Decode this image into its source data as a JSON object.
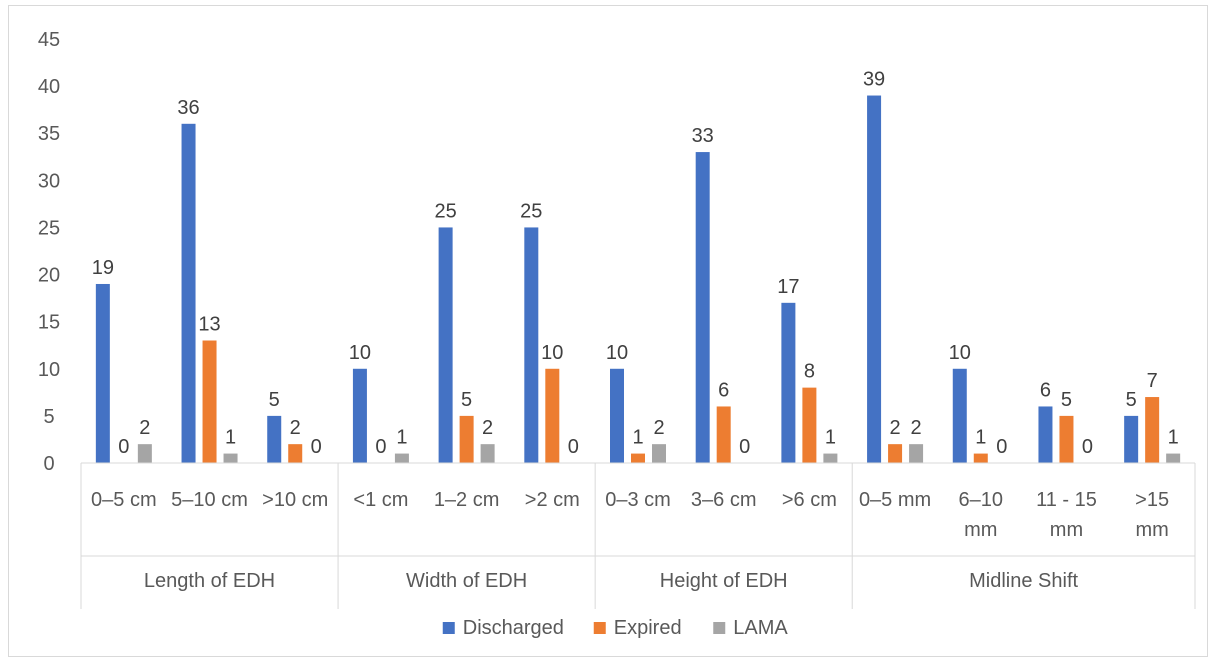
{
  "chart_data": {
    "type": "bar",
    "title": "",
    "xlabel": "",
    "ylabel": "",
    "ylim": [
      0,
      45
    ],
    "yticks": [
      0,
      5,
      10,
      15,
      20,
      25,
      30,
      35,
      40,
      45
    ],
    "grid": false,
    "legend_position": "bottom",
    "groups": [
      {
        "name": "Length of EDH",
        "categories": [
          [
            "0–5 cm"
          ],
          [
            "5–10 cm"
          ],
          [
            ">10 cm"
          ]
        ]
      },
      {
        "name": "Width of EDH",
        "categories": [
          [
            "<1 cm"
          ],
          [
            "1–2 cm"
          ],
          [
            ">2 cm"
          ]
        ]
      },
      {
        "name": "Height of EDH",
        "categories": [
          [
            "0–3 cm"
          ],
          [
            "3–6 cm"
          ],
          [
            ">6 cm"
          ]
        ]
      },
      {
        "name": "Midline Shift",
        "categories": [
          [
            "0–5 mm"
          ],
          [
            "6–10",
            "mm"
          ],
          [
            "11 - 15",
            "mm"
          ],
          [
            ">15",
            "mm"
          ]
        ]
      }
    ],
    "series": [
      {
        "name": "Discharged",
        "color": "#4472C4",
        "values": [
          19,
          36,
          5,
          10,
          25,
          25,
          10,
          33,
          17,
          39,
          10,
          6,
          5
        ]
      },
      {
        "name": "Expired",
        "color": "#ED7D31",
        "values": [
          0,
          13,
          2,
          0,
          5,
          10,
          1,
          6,
          8,
          2,
          1,
          5,
          7
        ]
      },
      {
        "name": "LAMA",
        "color": "#A5A5A5",
        "values": [
          2,
          1,
          0,
          1,
          2,
          0,
          2,
          0,
          1,
          2,
          0,
          0,
          1
        ]
      }
    ]
  }
}
